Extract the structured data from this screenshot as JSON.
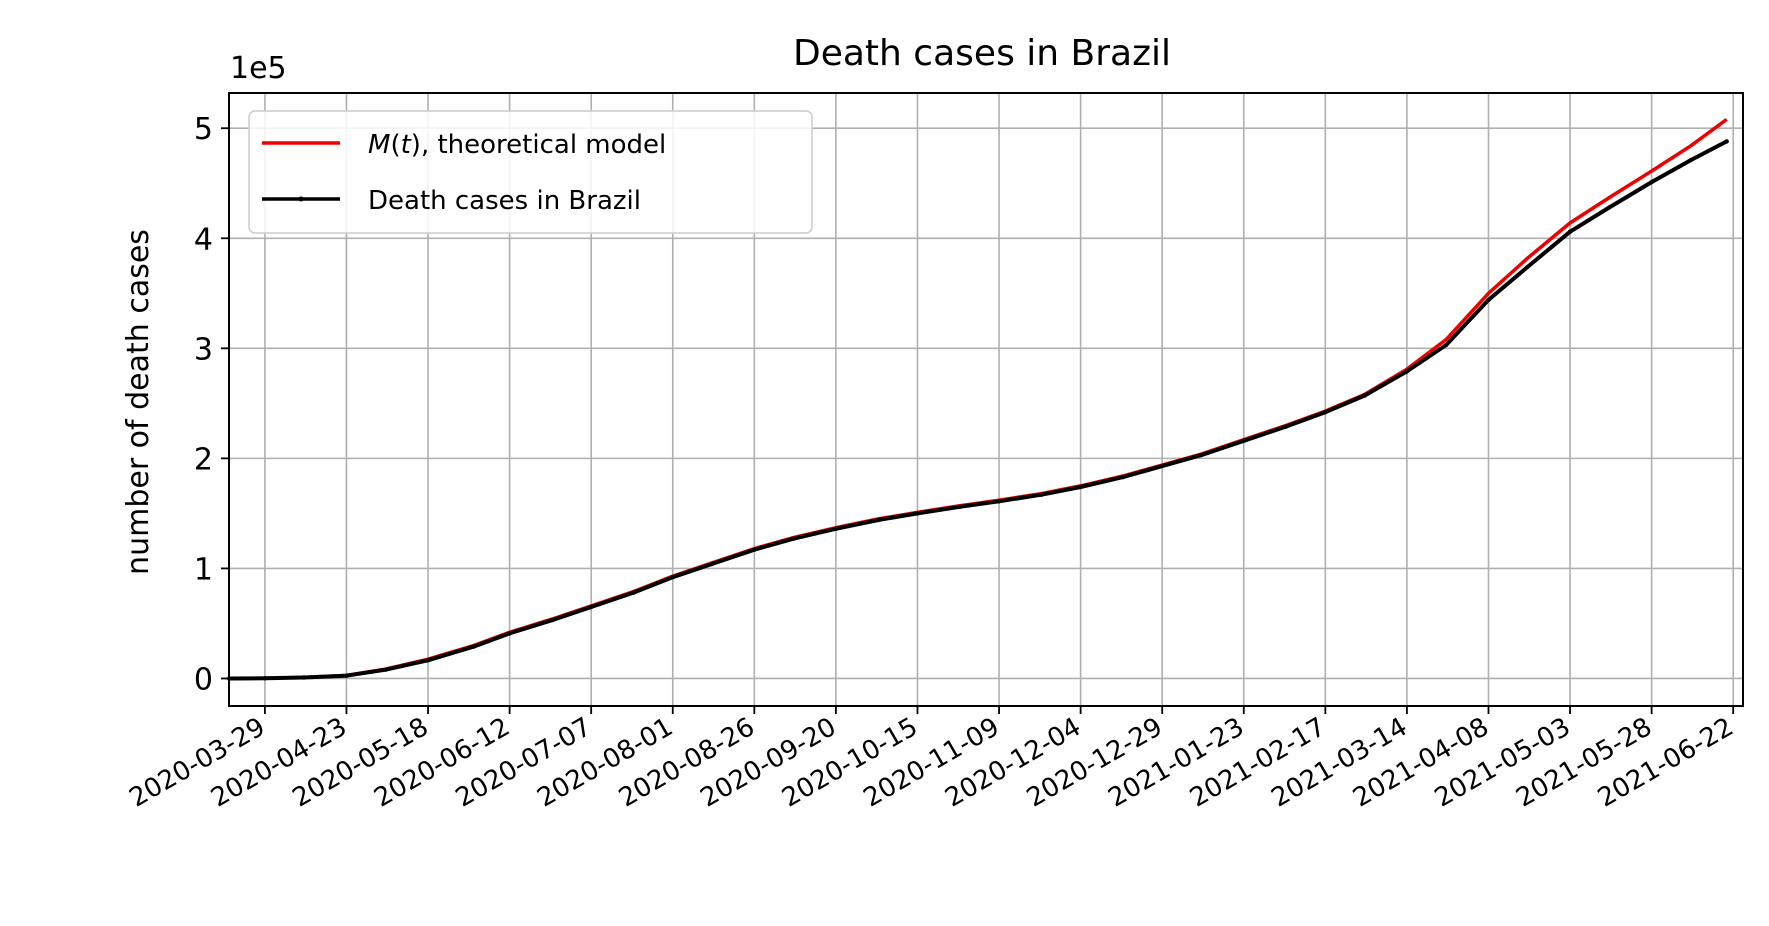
{
  "chart_data": {
    "type": "line",
    "title": "Death cases in Brazil",
    "xlabel": "",
    "ylabel": "number of death cases",
    "y_offset_label": "1e5",
    "xlim": [
      "2020-03-18",
      "2021-06-25"
    ],
    "ylim": [
      -25000,
      532000
    ],
    "x_ticks": [
      "2020-03-29",
      "2020-04-23",
      "2020-05-18",
      "2020-06-12",
      "2020-07-07",
      "2020-08-01",
      "2020-08-26",
      "2020-09-20",
      "2020-10-15",
      "2020-11-09",
      "2020-12-04",
      "2020-12-29",
      "2021-01-23",
      "2021-02-17",
      "2021-03-14",
      "2021-04-08",
      "2021-05-03",
      "2021-05-28",
      "2021-06-22"
    ],
    "y_ticks": [
      0,
      100000,
      200000,
      300000,
      400000,
      500000
    ],
    "y_tick_labels": [
      "0",
      "1",
      "2",
      "3",
      "4",
      "5"
    ],
    "grid": true,
    "legend_position": "top-left",
    "series": [
      {
        "name": "M(t), theoretical model",
        "name_prefix": "M",
        "name_var": "t",
        "name_suffix": ", theoretical model",
        "color": "#ee0000",
        "points": [
          [
            "2020-03-18",
            0
          ],
          [
            "2020-03-29",
            300
          ],
          [
            "2020-04-10",
            1000
          ],
          [
            "2020-04-23",
            2800
          ],
          [
            "2020-05-05",
            8500
          ],
          [
            "2020-05-18",
            17500
          ],
          [
            "2020-06-01",
            30000
          ],
          [
            "2020-06-12",
            42000
          ],
          [
            "2020-06-25",
            54000
          ],
          [
            "2020-07-07",
            66000
          ],
          [
            "2020-07-20",
            79000
          ],
          [
            "2020-08-01",
            93000
          ],
          [
            "2020-08-13",
            105000
          ],
          [
            "2020-08-26",
            118000
          ],
          [
            "2020-09-07",
            128000
          ],
          [
            "2020-09-20",
            137000
          ],
          [
            "2020-10-03",
            145000
          ],
          [
            "2020-10-15",
            151000
          ],
          [
            "2020-10-28",
            157000
          ],
          [
            "2020-11-09",
            162000
          ],
          [
            "2020-11-22",
            168000
          ],
          [
            "2020-12-04",
            175000
          ],
          [
            "2020-12-17",
            184000
          ],
          [
            "2020-12-29",
            194000
          ],
          [
            "2021-01-10",
            204000
          ],
          [
            "2021-01-23",
            217000
          ],
          [
            "2021-02-05",
            230000
          ],
          [
            "2021-02-17",
            243000
          ],
          [
            "2021-03-01",
            258000
          ],
          [
            "2021-03-14",
            281000
          ],
          [
            "2021-03-26",
            308000
          ],
          [
            "2021-04-08",
            350000
          ],
          [
            "2021-04-20",
            382000
          ],
          [
            "2021-05-03",
            414000
          ],
          [
            "2021-05-15",
            437000
          ],
          [
            "2021-05-28",
            461000
          ],
          [
            "2021-06-09",
            484000
          ],
          [
            "2021-06-20",
            508000
          ]
        ]
      },
      {
        "name": "Death cases in Brazil",
        "color": "#000000",
        "points": [
          [
            "2020-03-18",
            0
          ],
          [
            "2020-03-29",
            200
          ],
          [
            "2020-04-10",
            900
          ],
          [
            "2020-04-23",
            2500
          ],
          [
            "2020-05-05",
            8000
          ],
          [
            "2020-05-18",
            16500
          ],
          [
            "2020-06-01",
            29000
          ],
          [
            "2020-06-12",
            41000
          ],
          [
            "2020-06-25",
            53000
          ],
          [
            "2020-07-07",
            65000
          ],
          [
            "2020-07-20",
            78000
          ],
          [
            "2020-08-01",
            92000
          ],
          [
            "2020-08-13",
            104000
          ],
          [
            "2020-08-26",
            117000
          ],
          [
            "2020-09-07",
            127000
          ],
          [
            "2020-09-20",
            136000
          ],
          [
            "2020-10-03",
            144000
          ],
          [
            "2020-10-15",
            150000
          ],
          [
            "2020-10-28",
            156000
          ],
          [
            "2020-11-09",
            161000
          ],
          [
            "2020-11-22",
            167000
          ],
          [
            "2020-12-04",
            174000
          ],
          [
            "2020-12-17",
            183000
          ],
          [
            "2020-12-29",
            193000
          ],
          [
            "2021-01-10",
            203000
          ],
          [
            "2021-01-23",
            216000
          ],
          [
            "2021-02-05",
            229000
          ],
          [
            "2021-02-17",
            242000
          ],
          [
            "2021-03-01",
            257000
          ],
          [
            "2021-03-14",
            279000
          ],
          [
            "2021-03-26",
            303000
          ],
          [
            "2021-04-08",
            344000
          ],
          [
            "2021-04-20",
            374000
          ],
          [
            "2021-05-03",
            406000
          ],
          [
            "2021-05-15",
            428000
          ],
          [
            "2021-05-28",
            451000
          ],
          [
            "2021-06-09",
            471000
          ],
          [
            "2021-06-20",
            488000
          ]
        ]
      }
    ]
  }
}
